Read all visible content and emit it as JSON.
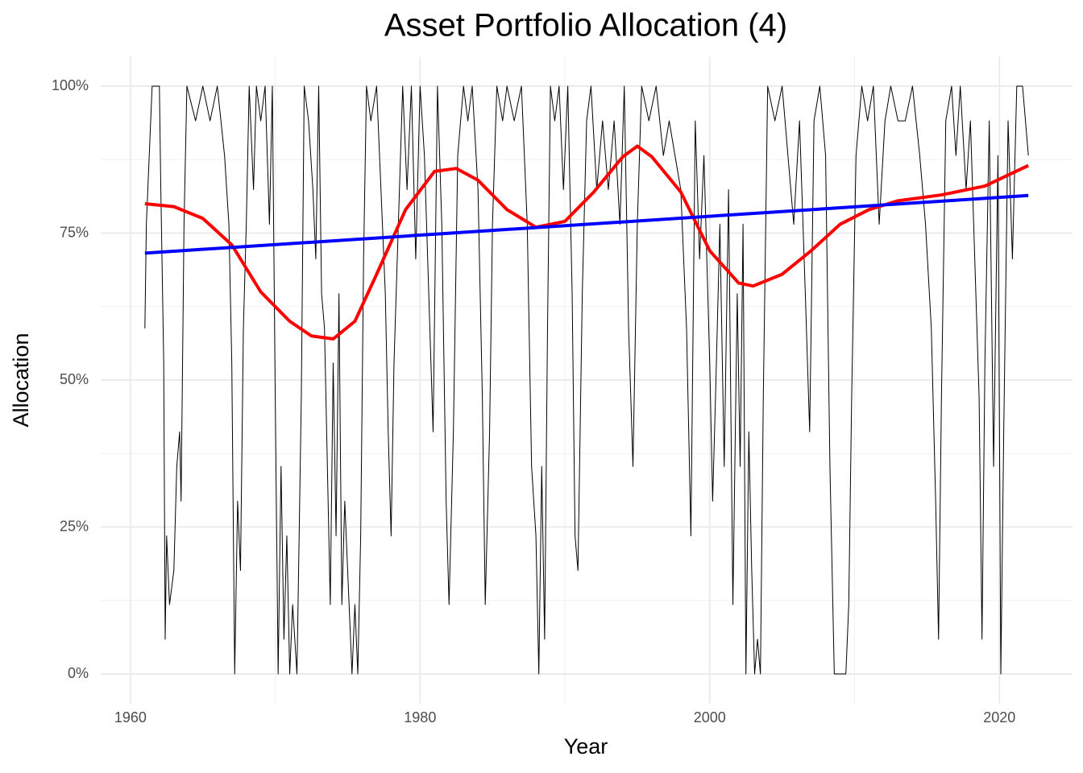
{
  "chart_data": {
    "type": "line",
    "title": "Asset Portfolio Allocation (4)",
    "x_label": "Year",
    "y_label": "Allocation",
    "grid": true,
    "xlim": [
      1957.95,
      2025.05
    ],
    "xticks": [
      1960,
      1980,
      2000,
      2020
    ],
    "xminor": [
      1970,
      1990,
      2010
    ],
    "ylim": [
      -5,
      105
    ],
    "yticks": [
      {
        "value": 0,
        "label": "0%"
      },
      {
        "value": 25,
        "label": "25%"
      },
      {
        "value": 50,
        "label": "50%"
      },
      {
        "value": 75,
        "label": "75%"
      },
      {
        "value": 100,
        "label": "100%"
      }
    ],
    "yminor": [
      12.5,
      37.5,
      62.5,
      87.5
    ],
    "series": [
      {
        "color": "#000000",
        "width": 1,
        "x": [
          1961.0,
          1961.1,
          1961.3,
          1961.5,
          1962.0,
          1962.1,
          1962.3,
          1962.4,
          1962.5,
          1962.7,
          1963.0,
          1963.2,
          1963.4,
          1963.5,
          1963.7,
          1963.9,
          1964.5,
          1965.0,
          1965.5,
          1966.0,
          1966.5,
          1966.8,
          1967.0,
          1967.2,
          1967.4,
          1967.6,
          1967.8,
          1968.0,
          1968.2,
          1968.5,
          1968.7,
          1969.0,
          1969.3,
          1969.6,
          1969.8,
          1970.0,
          1970.2,
          1970.4,
          1970.6,
          1970.8,
          1971.0,
          1971.2,
          1971.5,
          1971.8,
          1972.0,
          1972.3,
          1972.6,
          1972.8,
          1973.0,
          1973.2,
          1973.4,
          1973.6,
          1973.8,
          1974.0,
          1974.2,
          1974.4,
          1974.6,
          1974.8,
          1975.0,
          1975.3,
          1975.5,
          1975.7,
          1975.9,
          1976.1,
          1976.3,
          1976.6,
          1977.0,
          1977.3,
          1977.6,
          1977.8,
          1978.0,
          1978.2,
          1978.5,
          1978.8,
          1979.1,
          1979.4,
          1979.7,
          1980.0,
          1980.3,
          1980.6,
          1980.9,
          1981.2,
          1981.5,
          1981.8,
          1982.0,
          1982.3,
          1982.6,
          1983.0,
          1983.3,
          1983.6,
          1984.0,
          1984.3,
          1984.5,
          1984.8,
          1985.0,
          1985.3,
          1985.7,
          1986.0,
          1986.5,
          1987.0,
          1987.4,
          1987.7,
          1988.0,
          1988.2,
          1988.4,
          1988.6,
          1988.8,
          1989.0,
          1989.3,
          1989.6,
          1989.9,
          1990.2,
          1990.5,
          1990.7,
          1990.9,
          1991.2,
          1991.5,
          1991.8,
          1992.2,
          1992.6,
          1993.0,
          1993.4,
          1993.8,
          1994.1,
          1994.4,
          1994.7,
          1995.0,
          1995.3,
          1995.8,
          1996.3,
          1996.8,
          1997.2,
          1997.6,
          1998.0,
          1998.4,
          1998.7,
          1999.0,
          1999.3,
          1999.6,
          2000.0,
          2000.2,
          2000.4,
          2000.7,
          2001.0,
          2001.3,
          2001.6,
          2001.9,
          2002.1,
          2002.3,
          2002.5,
          2002.7,
          2002.9,
          2003.1,
          2003.3,
          2003.5,
          2003.7,
          2004.0,
          2004.5,
          2005.0,
          2005.4,
          2005.8,
          2006.2,
          2006.6,
          2006.9,
          2007.2,
          2007.6,
          2008.0,
          2008.3,
          2008.6,
          2009.0,
          2009.4,
          2009.6,
          2009.8,
          2010.1,
          2010.5,
          2010.9,
          2011.3,
          2011.7,
          2012.1,
          2012.5,
          2013.0,
          2013.5,
          2014.0,
          2014.5,
          2014.9,
          2015.3,
          2015.6,
          2015.8,
          2016.0,
          2016.3,
          2016.7,
          2017.0,
          2017.3,
          2017.7,
          2018.0,
          2018.3,
          2018.6,
          2018.8,
          2019.0,
          2019.3,
          2019.6,
          2019.9,
          2020.1,
          2020.3,
          2020.6,
          2020.9,
          2021.2,
          2021.6,
          2022.0
        ],
        "values": [
          58.8,
          76.5,
          88.2,
          100,
          100,
          82.4,
          52.9,
          5.9,
          23.5,
          11.8,
          17.6,
          35.3,
          41.2,
          29.4,
          76.5,
          100,
          94.1,
          100,
          94.1,
          100,
          88.2,
          76.5,
          52.9,
          0,
          29.4,
          17.6,
          58.8,
          76.5,
          100,
          82.4,
          100,
          94.1,
          100,
          76.5,
          100,
          47.1,
          0,
          35.3,
          5.9,
          23.5,
          0,
          11.8,
          0,
          47.1,
          100,
          94.1,
          82.4,
          70.6,
          100,
          64.7,
          58.8,
          35.3,
          11.8,
          52.9,
          23.5,
          64.7,
          11.8,
          29.4,
          17.6,
          0,
          11.8,
          0,
          23.5,
          70.6,
          100,
          94.1,
          100,
          82.4,
          64.7,
          41.2,
          23.5,
          52.9,
          76.5,
          100,
          82.4,
          100,
          70.6,
          100,
          88.2,
          64.7,
          41.2,
          100,
          76.5,
          29.4,
          11.8,
          41.2,
          88.2,
          100,
          94.1,
          100,
          82.4,
          47.1,
          11.8,
          41.2,
          76.5,
          100,
          94.1,
          100,
          94.1,
          100,
          76.5,
          35.3,
          23.5,
          0,
          35.3,
          5.9,
          58.8,
          100,
          94.1,
          100,
          82.4,
          100,
          64.7,
          23.5,
          17.6,
          64.7,
          94.1,
          100,
          82.4,
          94.1,
          82.4,
          94.1,
          76.5,
          100,
          58.8,
          35.3,
          76.5,
          100,
          94.1,
          100,
          88.2,
          94.1,
          88.2,
          82.4,
          58.8,
          23.5,
          94.1,
          70.6,
          88.2,
          52.9,
          29.4,
          47.1,
          76.5,
          35.3,
          82.4,
          11.8,
          64.7,
          35.3,
          76.5,
          0,
          41.2,
          17.6,
          0,
          5.9,
          0,
          47.1,
          100,
          94.1,
          100,
          88.2,
          76.5,
          94.1,
          64.7,
          41.2,
          94.1,
          100,
          88.2,
          35.3,
          0,
          0,
          0,
          11.8,
          47.1,
          88.2,
          100,
          94.1,
          100,
          76.5,
          94.1,
          100,
          94.1,
          94.1,
          100,
          88.2,
          76.5,
          58.8,
          29.4,
          5.9,
          47.1,
          94.1,
          100,
          88.2,
          100,
          82.4,
          94.1,
          70.6,
          47.1,
          5.9,
          52.9,
          94.1,
          35.3,
          88.2,
          0,
          41.2,
          94.1,
          70.6,
          100,
          100,
          88.2
        ]
      },
      {
        "color": "#ff0000",
        "width": 4,
        "x": [
          1961,
          1963,
          1965,
          1967,
          1969,
          1971,
          1972.5,
          1974,
          1975.5,
          1977,
          1979,
          1981,
          1982.5,
          1984,
          1986,
          1988,
          1990,
          1992,
          1994,
          1995,
          1996,
          1998,
          2000,
          2002,
          2003,
          2005,
          2007,
          2009,
          2011,
          2013,
          2016,
          2019,
          2022
        ],
        "values": [
          80,
          79.5,
          77.5,
          73,
          65,
          60,
          57.5,
          57,
          60,
          68,
          79,
          85.5,
          86,
          84,
          79,
          76,
          77,
          82,
          88,
          89.8,
          88,
          82,
          72,
          66.5,
          66,
          68,
          72,
          76.5,
          79,
          80.5,
          81.5,
          83,
          86.5
        ]
      },
      {
        "color": "#0000ff",
        "width": 4,
        "x": [
          1961,
          2022
        ],
        "values": [
          71.6,
          81.4
        ]
      }
    ]
  }
}
